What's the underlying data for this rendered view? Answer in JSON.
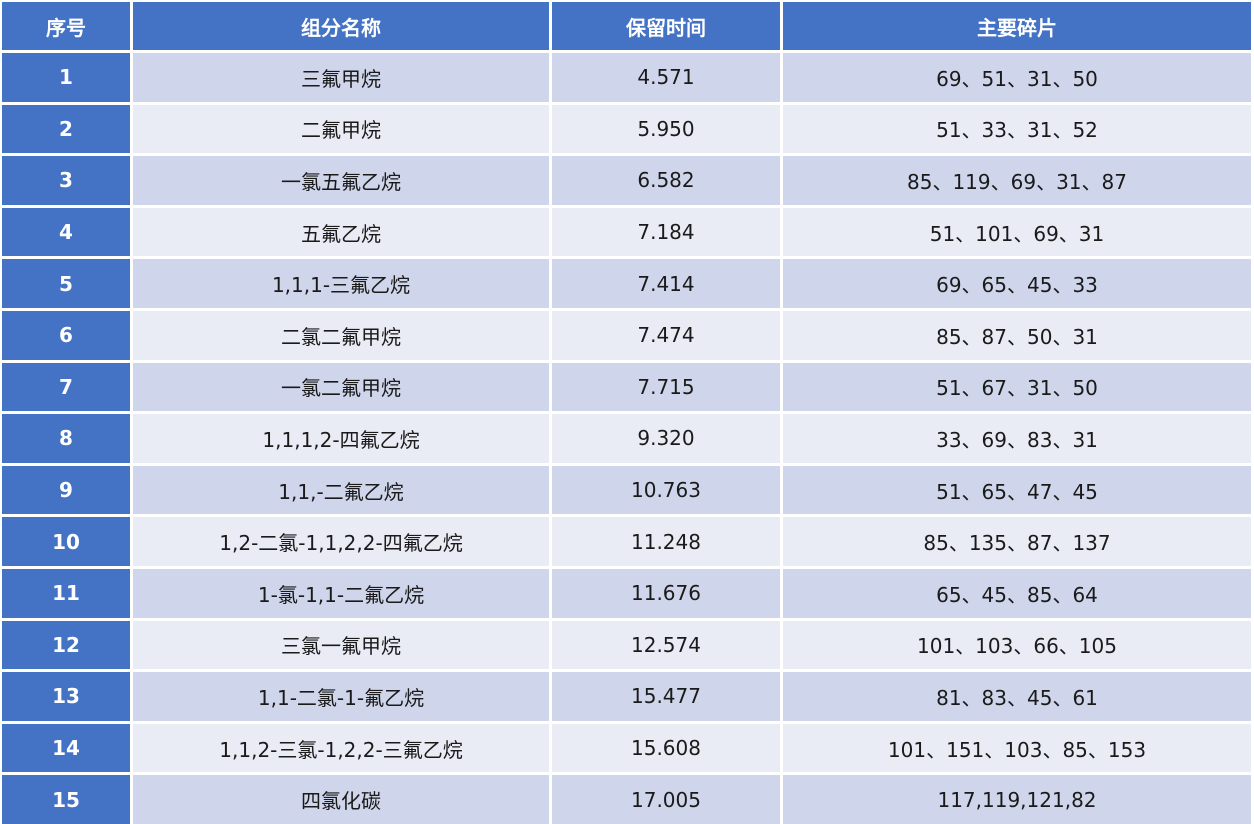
{
  "table": {
    "headers": [
      "序号",
      "组分名称",
      "保留时间",
      "主要碎片"
    ],
    "rows": [
      {
        "no": "1",
        "name": "三氟甲烷",
        "rt": "4.571",
        "frag": "69、51、31、50"
      },
      {
        "no": "2",
        "name": "二氟甲烷",
        "rt": "5.950",
        "frag": "51、33、31、52"
      },
      {
        "no": "3",
        "name": "一氯五氟乙烷",
        "rt": "6.582",
        "frag": "85、119、69、31、87"
      },
      {
        "no": "4",
        "name": "五氟乙烷",
        "rt": "7.184",
        "frag": "51、101、69、31"
      },
      {
        "no": "5",
        "name": "1,1,1-三氟乙烷",
        "rt": "7.414",
        "frag": "69、65、45、33"
      },
      {
        "no": "6",
        "name": "二氯二氟甲烷",
        "rt": "7.474",
        "frag": "85、87、50、31"
      },
      {
        "no": "7",
        "name": "一氯二氟甲烷",
        "rt": "7.715",
        "frag": "51、67、31、50"
      },
      {
        "no": "8",
        "name": "1,1,1,2-四氟乙烷",
        "rt": "9.320",
        "frag": "33、69、83、31"
      },
      {
        "no": "9",
        "name": "1,1,-二氟乙烷",
        "rt": "10.763",
        "frag": "51、65、47、45"
      },
      {
        "no": "10",
        "name": "1,2-二氯-1,1,2,2-四氟乙烷",
        "rt": "11.248",
        "frag": "85、135、87、137"
      },
      {
        "no": "11",
        "name": "1-氯-1,1-二氟乙烷",
        "rt": "11.676",
        "frag": "65、45、85、64"
      },
      {
        "no": "12",
        "name": "三氯一氟甲烷",
        "rt": "12.574",
        "frag": "101、103、66、105"
      },
      {
        "no": "13",
        "name": "1,1-二氯-1-氟乙烷",
        "rt": "15.477",
        "frag": "81、83、45、61"
      },
      {
        "no": "14",
        "name": "1,1,2-三氯-1,2,2-三氟乙烷",
        "rt": "15.608",
        "frag": "101、151、103、85、153"
      },
      {
        "no": "15",
        "name": "四氯化碳",
        "rt": "17.005",
        "frag": "117,119,121,82"
      }
    ]
  },
  "colors": {
    "header_bg": "#4472c4",
    "row_odd_bg": "#cfd5ea",
    "row_even_bg": "#e9ebf5"
  }
}
